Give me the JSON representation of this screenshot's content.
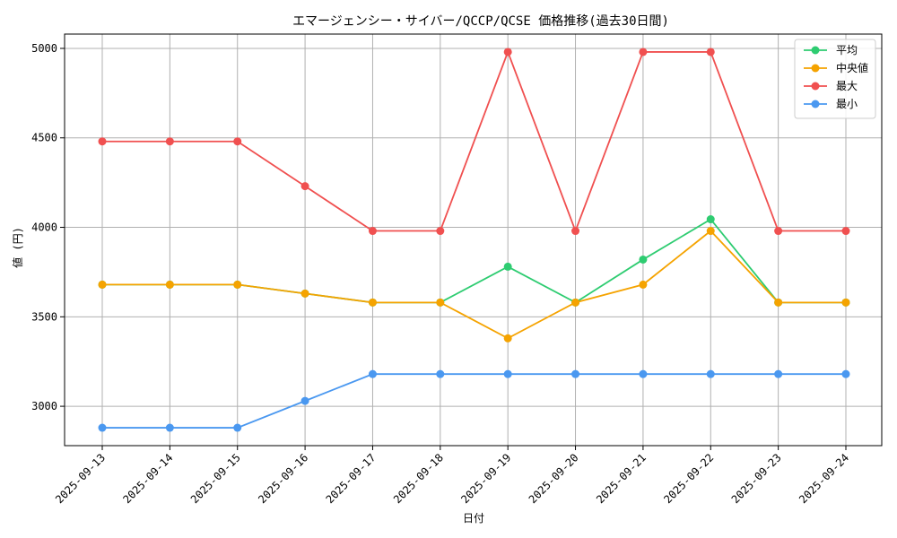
{
  "chart_data": {
    "type": "line",
    "title": "エマージェンシー・サイバー/QCCP/QCSE 価格推移(過去30日間)",
    "xlabel": "日付",
    "ylabel": "値 (円)",
    "categories": [
      "2025-09-13",
      "2025-09-14",
      "2025-09-15",
      "2025-09-16",
      "2025-09-17",
      "2025-09-18",
      "2025-09-19",
      "2025-09-20",
      "2025-09-21",
      "2025-09-22",
      "2025-09-23",
      "2025-09-24"
    ],
    "ylim": [
      2780,
      5080
    ],
    "yticks": [
      3000,
      3500,
      4000,
      4500,
      5000
    ],
    "grid": true,
    "legend_position": "top-right",
    "series": [
      {
        "name": "平均",
        "color": "#2ecc71",
        "values": [
          3680,
          3680,
          3680,
          3630,
          3580,
          3580,
          3780,
          3580,
          3820,
          4045,
          3580,
          3580
        ]
      },
      {
        "name": "中央値",
        "color": "#f5a300",
        "values": [
          3680,
          3680,
          3680,
          3630,
          3580,
          3580,
          3380,
          3580,
          3680,
          3980,
          3580,
          3580
        ]
      },
      {
        "name": "最大",
        "color": "#f05050",
        "values": [
          4480,
          4480,
          4480,
          4230,
          3980,
          3980,
          4980,
          3980,
          4980,
          4980,
          3980,
          3980
        ]
      },
      {
        "name": "最小",
        "color": "#4a98f0",
        "values": [
          2880,
          2880,
          2880,
          3030,
          3180,
          3180,
          3180,
          3180,
          3180,
          3180,
          3180,
          3180
        ]
      }
    ]
  }
}
